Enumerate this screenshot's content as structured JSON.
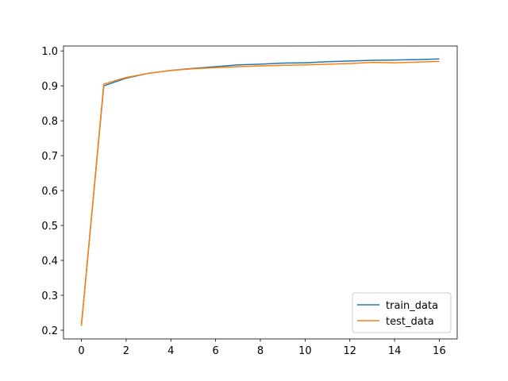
{
  "chart_data": {
    "type": "line",
    "x": [
      0,
      1,
      2,
      3,
      4,
      5,
      6,
      7,
      8,
      9,
      10,
      11,
      12,
      13,
      14,
      15,
      16
    ],
    "series": [
      {
        "name": "train_data",
        "color": "#1f77b4",
        "values": [
          0.213,
          0.9,
          0.922,
          0.936,
          0.944,
          0.95,
          0.955,
          0.96,
          0.962,
          0.965,
          0.966,
          0.969,
          0.971,
          0.973,
          0.974,
          0.975,
          0.977
        ]
      },
      {
        "name": "test_data",
        "color": "#ff7f0e",
        "values": [
          0.213,
          0.905,
          0.924,
          0.936,
          0.944,
          0.949,
          0.952,
          0.955,
          0.957,
          0.959,
          0.96,
          0.962,
          0.964,
          0.967,
          0.966,
          0.968,
          0.97
        ]
      }
    ],
    "xlim": [
      -0.8,
      16.8
    ],
    "xticks": [
      0,
      2,
      4,
      6,
      8,
      10,
      12,
      14,
      16
    ],
    "ylim": [
      0.175,
      1.014
    ],
    "yticks": [
      0.2,
      0.3,
      0.4,
      0.5,
      0.6,
      0.7,
      0.8,
      0.9,
      {
        "value": 1,
        "label": "1.0"
      }
    ],
    "legend": "lower right",
    "grid": false
  }
}
